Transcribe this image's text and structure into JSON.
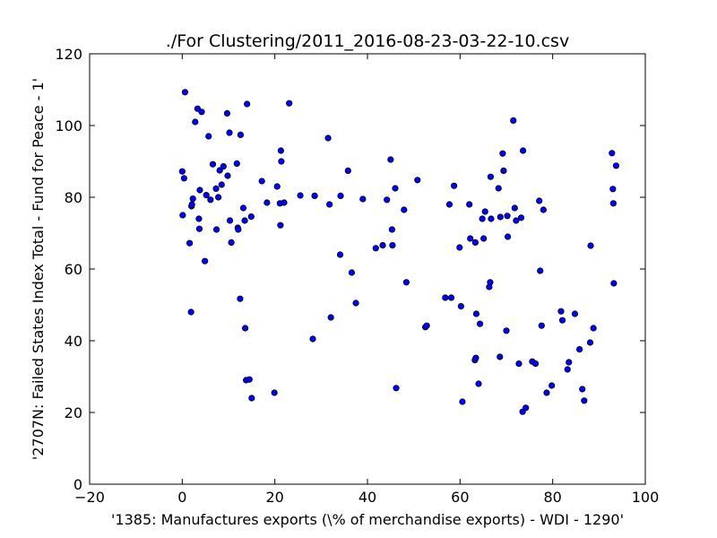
{
  "chart_data": {
    "type": "scatter",
    "title": "./For Clustering/2011_2016-08-23-03-22-10.csv",
    "xlabel": "'1385: Manufactures exports  (\\% of merchandise exports) - WDI - 1290'",
    "ylabel": "'2707N: Failed States Index Total - Fund for Peace - 1'",
    "xlim": [
      -20,
      100
    ],
    "ylim": [
      0,
      120
    ],
    "xticks": [
      -20,
      0,
      20,
      40,
      60,
      80,
      100
    ],
    "yticks": [
      0,
      20,
      40,
      60,
      80,
      100,
      120
    ],
    "xtick_labels": [
      "−20",
      "0",
      "20",
      "40",
      "60",
      "80",
      "100"
    ],
    "ytick_labels": [
      "0",
      "20",
      "40",
      "60",
      "80",
      "100",
      "120"
    ],
    "grid": false,
    "marker_color": "#0000ff",
    "marker_edge_color": "#000000",
    "points": [
      [
        0.6,
        109.3
      ],
      [
        0.0,
        87.2
      ],
      [
        0.4,
        85.3
      ],
      [
        0.1,
        75.0
      ],
      [
        1.6,
        67.2
      ],
      [
        1.9,
        48.0
      ],
      [
        2.0,
        77.5
      ],
      [
        2.1,
        78.0
      ],
      [
        2.3,
        79.6
      ],
      [
        2.8,
        101.0
      ],
      [
        3.3,
        104.7
      ],
      [
        3.8,
        82.0
      ],
      [
        3.6,
        74.0
      ],
      [
        3.7,
        71.2
      ],
      [
        4.2,
        103.8
      ],
      [
        4.9,
        62.2
      ],
      [
        5.2,
        80.6
      ],
      [
        5.7,
        97.0
      ],
      [
        6.1,
        79.3
      ],
      [
        6.6,
        89.2
      ],
      [
        7.3,
        82.4
      ],
      [
        7.4,
        71.0
      ],
      [
        7.8,
        80.0
      ],
      [
        8.1,
        87.5
      ],
      [
        8.5,
        83.5
      ],
      [
        8.9,
        88.6
      ],
      [
        9.7,
        103.4
      ],
      [
        9.8,
        86.0
      ],
      [
        10.2,
        98.0
      ],
      [
        10.3,
        73.5
      ],
      [
        10.6,
        67.4
      ],
      [
        11.8,
        89.4
      ],
      [
        12.0,
        71.5
      ],
      [
        12.1,
        71.0
      ],
      [
        12.5,
        51.7
      ],
      [
        12.6,
        97.4
      ],
      [
        13.2,
        77.0
      ],
      [
        13.5,
        73.5
      ],
      [
        13.6,
        43.5
      ],
      [
        13.8,
        29.0
      ],
      [
        14.0,
        106.0
      ],
      [
        14.5,
        29.2
      ],
      [
        14.9,
        74.6
      ],
      [
        15.0,
        24.0
      ],
      [
        17.2,
        84.5
      ],
      [
        18.3,
        78.5
      ],
      [
        19.9,
        25.5
      ],
      [
        20.5,
        83.0
      ],
      [
        21.1,
        78.3
      ],
      [
        21.2,
        72.2
      ],
      [
        21.3,
        93.0
      ],
      [
        21.4,
        90.0
      ],
      [
        22.0,
        78.5
      ],
      [
        23.1,
        106.2
      ],
      [
        25.5,
        80.5
      ],
      [
        28.2,
        40.5
      ],
      [
        28.6,
        80.4
      ],
      [
        31.5,
        96.5
      ],
      [
        31.8,
        78.0
      ],
      [
        32.1,
        46.5
      ],
      [
        34.1,
        64.0
      ],
      [
        34.2,
        80.4
      ],
      [
        35.8,
        87.4
      ],
      [
        36.6,
        59.0
      ],
      [
        37.5,
        50.5
      ],
      [
        39.0,
        79.5
      ],
      [
        41.8,
        65.8
      ],
      [
        43.3,
        66.6
      ],
      [
        44.2,
        79.3
      ],
      [
        45.0,
        90.5
      ],
      [
        45.3,
        71.0
      ],
      [
        45.4,
        66.6
      ],
      [
        46.0,
        82.5
      ],
      [
        46.2,
        26.8
      ],
      [
        47.9,
        76.5
      ],
      [
        48.4,
        56.3
      ],
      [
        50.8,
        84.8
      ],
      [
        52.5,
        43.8
      ],
      [
        52.8,
        44.2
      ],
      [
        56.8,
        52.0
      ],
      [
        57.7,
        78.0
      ],
      [
        58.1,
        52.0
      ],
      [
        58.7,
        83.2
      ],
      [
        59.9,
        66.0
      ],
      [
        60.2,
        49.6
      ],
      [
        60.5,
        23.0
      ],
      [
        62.0,
        78.0
      ],
      [
        62.2,
        68.5
      ],
      [
        63.2,
        34.6
      ],
      [
        63.3,
        67.4
      ],
      [
        63.4,
        35.2
      ],
      [
        63.5,
        47.5
      ],
      [
        64.0,
        28.0
      ],
      [
        64.3,
        44.7
      ],
      [
        64.8,
        74.0
      ],
      [
        65.1,
        68.5
      ],
      [
        65.4,
        76.0
      ],
      [
        66.3,
        55.0
      ],
      [
        66.5,
        56.3
      ],
      [
        66.6,
        85.7
      ],
      [
        66.7,
        74.0
      ],
      [
        68.3,
        82.5
      ],
      [
        68.6,
        35.5
      ],
      [
        68.7,
        74.5
      ],
      [
        69.2,
        92.2
      ],
      [
        69.4,
        87.4
      ],
      [
        70.0,
        42.8
      ],
      [
        70.2,
        74.8
      ],
      [
        70.3,
        69.0
      ],
      [
        71.5,
        101.4
      ],
      [
        71.8,
        77.0
      ],
      [
        72.1,
        73.5
      ],
      [
        72.7,
        33.6
      ],
      [
        73.2,
        74.3
      ],
      [
        73.5,
        20.2
      ],
      [
        73.6,
        93.0
      ],
      [
        74.2,
        21.3
      ],
      [
        75.6,
        34.2
      ],
      [
        76.3,
        33.6
      ],
      [
        77.1,
        79.0
      ],
      [
        77.3,
        59.5
      ],
      [
        77.6,
        44.2
      ],
      [
        78.0,
        76.5
      ],
      [
        78.7,
        25.5
      ],
      [
        79.8,
        27.5
      ],
      [
        81.8,
        48.2
      ],
      [
        82.1,
        45.7
      ],
      [
        83.2,
        32.0
      ],
      [
        83.5,
        34.0
      ],
      [
        84.8,
        47.5
      ],
      [
        85.8,
        37.6
      ],
      [
        86.4,
        26.5
      ],
      [
        86.8,
        23.3
      ],
      [
        88.2,
        66.5
      ],
      [
        88.1,
        39.5
      ],
      [
        88.8,
        43.5
      ],
      [
        92.8,
        92.3
      ],
      [
        93.0,
        82.3
      ],
      [
        93.1,
        78.3
      ],
      [
        93.2,
        56.0
      ],
      [
        93.7,
        88.8
      ]
    ]
  }
}
